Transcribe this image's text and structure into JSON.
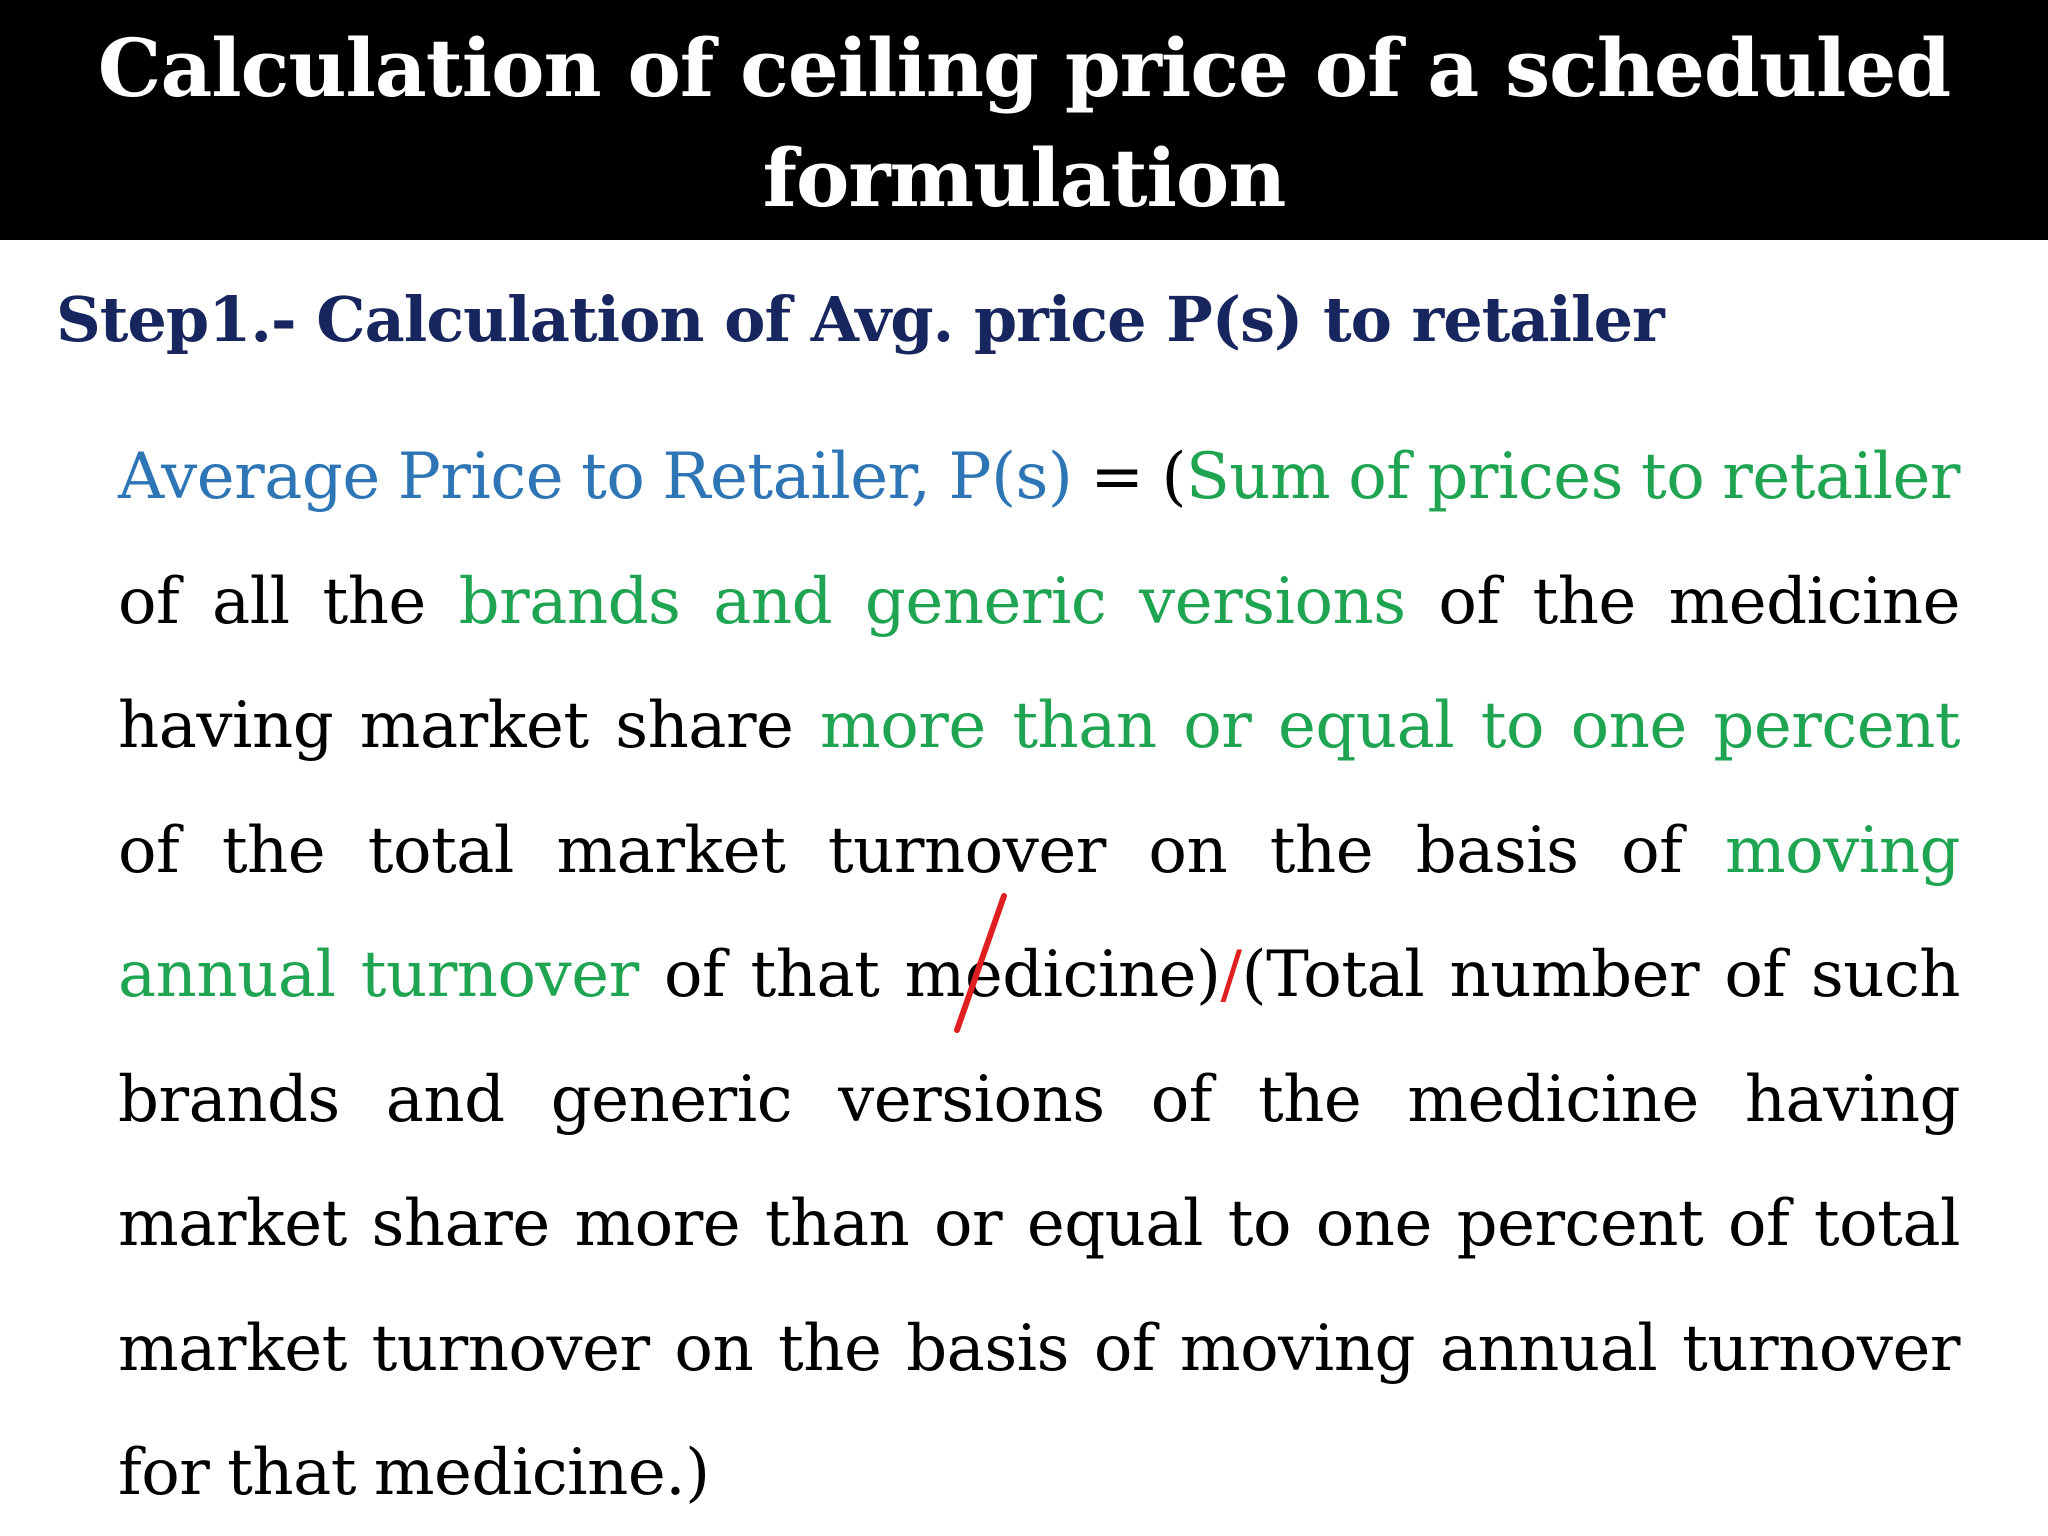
{
  "title": {
    "line1": "Calculation of ceiling price of a scheduled",
    "line2": "formulation"
  },
  "step_heading": "Step1.- Calculation of Avg. price P(s) to retailer",
  "formula": {
    "lhs": "Average Price to Retailer, P(s)",
    "equals_open": " = (",
    "green1": "Sum of prices to retailer",
    "text1": " of all the ",
    "green2": "brands and generic versions",
    "text2": " of the medicine having market share ",
    "green3": "more than or equal to one percent",
    "text3": " of the total market turnover on the basis of ",
    "green4": "moving annual turnover",
    "text4": " of that medicine)",
    "slash": "/",
    "text5": "(Total number of such brands and generic versions of the medicine having market share more than or equal to one percent of total market turnover on the basis of moving annual turnover for that medicine.)"
  },
  "colors": {
    "title_bg": "#000000",
    "title_text": "#ffffff",
    "heading": "#17265e",
    "highlight_blue": "#2e75b6",
    "highlight_green": "#1fa551",
    "annotation_red": "#e02020"
  }
}
